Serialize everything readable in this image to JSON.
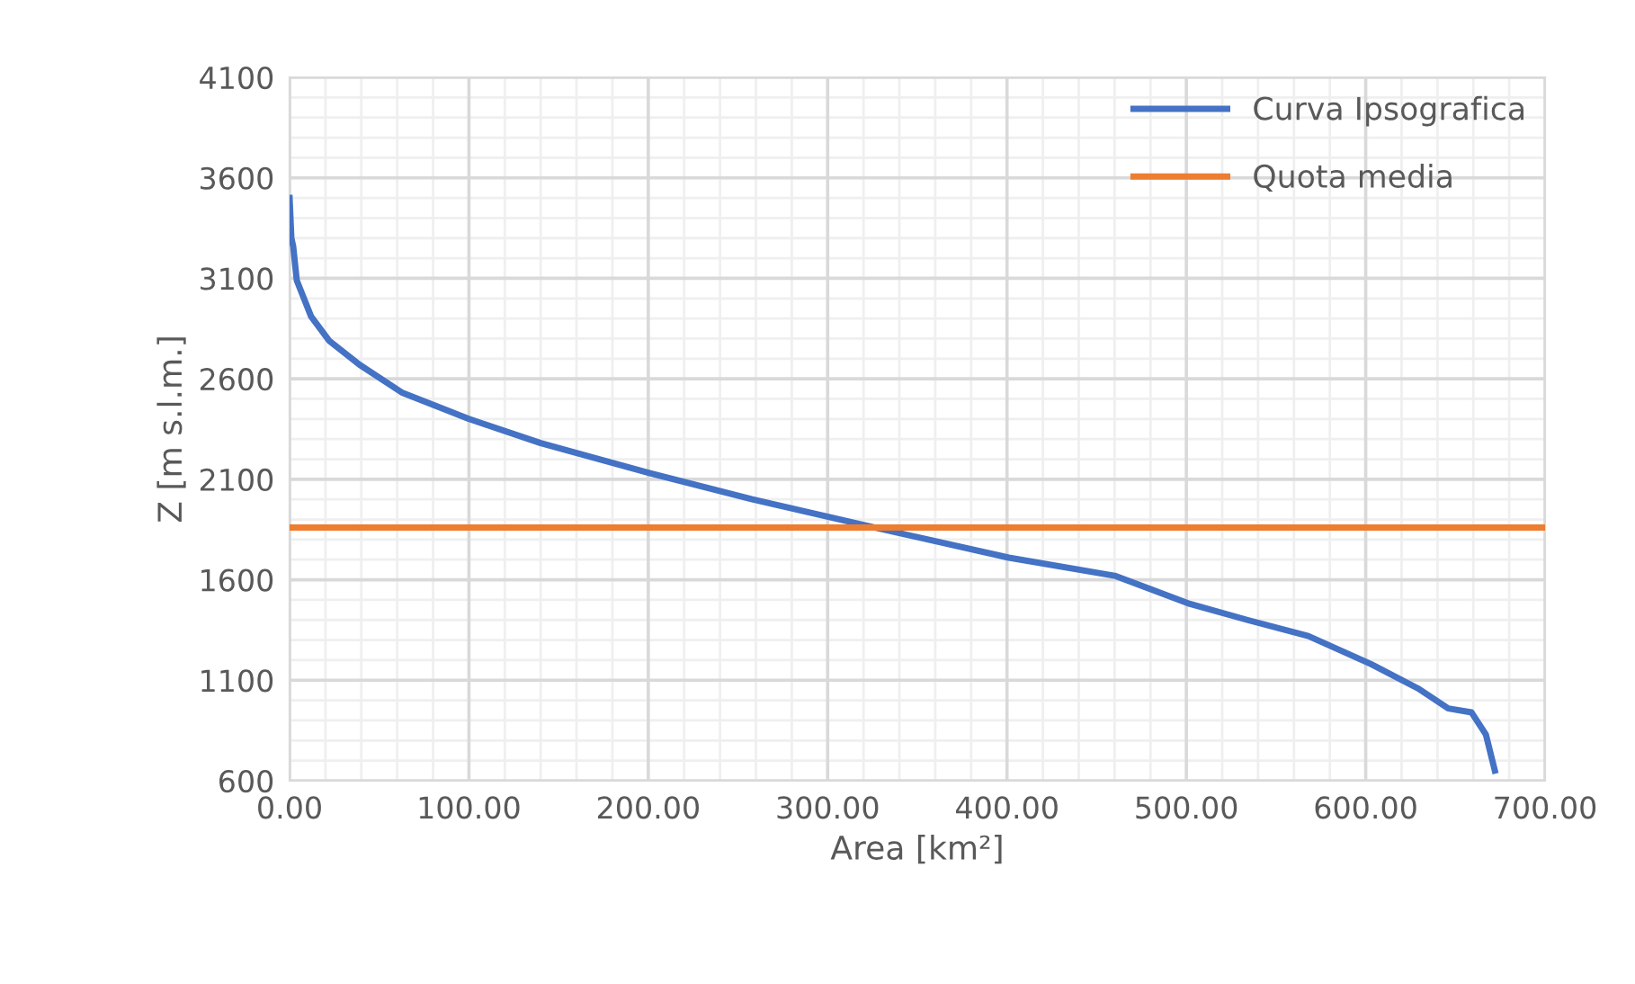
{
  "chart_data": {
    "type": "line",
    "xlabel": "Area [km²]",
    "ylabel": "Z [m s.l.m.]",
    "xlim": [
      0,
      700
    ],
    "ylim": [
      600,
      4100
    ],
    "xticks": [
      {
        "value": 0,
        "label": "0.00"
      },
      {
        "value": 20,
        "label": null
      },
      {
        "value": 40,
        "label": null
      },
      {
        "value": 60,
        "label": null
      },
      {
        "value": 80,
        "label": null
      },
      {
        "value": 100,
        "label": "100.00"
      },
      {
        "value": 120,
        "label": null
      },
      {
        "value": 140,
        "label": null
      },
      {
        "value": 160,
        "label": null
      },
      {
        "value": 180,
        "label": null
      },
      {
        "value": 200,
        "label": "200.00"
      },
      {
        "value": 220,
        "label": null
      },
      {
        "value": 240,
        "label": null
      },
      {
        "value": 260,
        "label": null
      },
      {
        "value": 280,
        "label": null
      },
      {
        "value": 300,
        "label": "300.00"
      },
      {
        "value": 320,
        "label": null
      },
      {
        "value": 340,
        "label": null
      },
      {
        "value": 360,
        "label": null
      },
      {
        "value": 380,
        "label": null
      },
      {
        "value": 400,
        "label": "400.00"
      },
      {
        "value": 420,
        "label": null
      },
      {
        "value": 440,
        "label": null
      },
      {
        "value": 460,
        "label": null
      },
      {
        "value": 480,
        "label": null
      },
      {
        "value": 500,
        "label": "500.00"
      },
      {
        "value": 520,
        "label": null
      },
      {
        "value": 540,
        "label": null
      },
      {
        "value": 560,
        "label": null
      },
      {
        "value": 580,
        "label": null
      },
      {
        "value": 600,
        "label": "600.00"
      },
      {
        "value": 620,
        "label": null
      },
      {
        "value": 640,
        "label": null
      },
      {
        "value": 660,
        "label": null
      },
      {
        "value": 680,
        "label": null
      },
      {
        "value": 700,
        "label": "700.00"
      }
    ],
    "yticks": [
      600,
      {
        "value": 700,
        "label": null
      },
      {
        "value": 800,
        "label": null
      },
      {
        "value": 900,
        "label": null
      },
      {
        "value": 1000,
        "label": null
      },
      1100,
      {
        "value": 1200,
        "label": null
      },
      {
        "value": 1300,
        "label": null
      },
      {
        "value": 1400,
        "label": null
      },
      {
        "value": 1500,
        "label": null
      },
      1600,
      {
        "value": 1700,
        "label": null
      },
      {
        "value": 1800,
        "label": null
      },
      {
        "value": 1900,
        "label": null
      },
      {
        "value": 2000,
        "label": null
      },
      2100,
      {
        "value": 2200,
        "label": null
      },
      {
        "value": 2300,
        "label": null
      },
      {
        "value": 2400,
        "label": null
      },
      {
        "value": 2500,
        "label": null
      },
      2600,
      {
        "value": 2700,
        "label": null
      },
      {
        "value": 2800,
        "label": null
      },
      {
        "value": 2900,
        "label": null
      },
      {
        "value": 3000,
        "label": null
      },
      3100,
      {
        "value": 3200,
        "label": null
      },
      {
        "value": 3300,
        "label": null
      },
      {
        "value": 3400,
        "label": null
      },
      {
        "value": 3500,
        "label": null
      },
      3600,
      {
        "value": 3700,
        "label": null
      },
      {
        "value": 3800,
        "label": null
      },
      {
        "value": 3900,
        "label": null
      },
      {
        "value": 4000,
        "label": null
      },
      4100
    ],
    "grid": true,
    "legend": "top right",
    "line_style": "solid",
    "marker": "none",
    "series": [
      {
        "name": "Curva Ipsografica",
        "color": "#4472c4",
        "x": [
          0,
          1,
          2,
          4,
          12,
          22,
          39,
          63,
          100,
          140,
          201,
          258,
          326,
          401,
          460,
          502,
          534,
          568,
          603,
          629,
          646,
          659,
          667,
          672
        ],
        "values": [
          3500,
          3300,
          3260,
          3090,
          2910,
          2790,
          2670,
          2530,
          2400,
          2280,
          2130,
          2000,
          1860,
          1710,
          1620,
          1480,
          1400,
          1320,
          1180,
          1060,
          960,
          940,
          830,
          650
        ]
      },
      {
        "name": "Quota media",
        "color": "#ed7d31",
        "x": [
          0,
          700
        ],
        "values": [
          1860,
          1860
        ]
      }
    ]
  }
}
